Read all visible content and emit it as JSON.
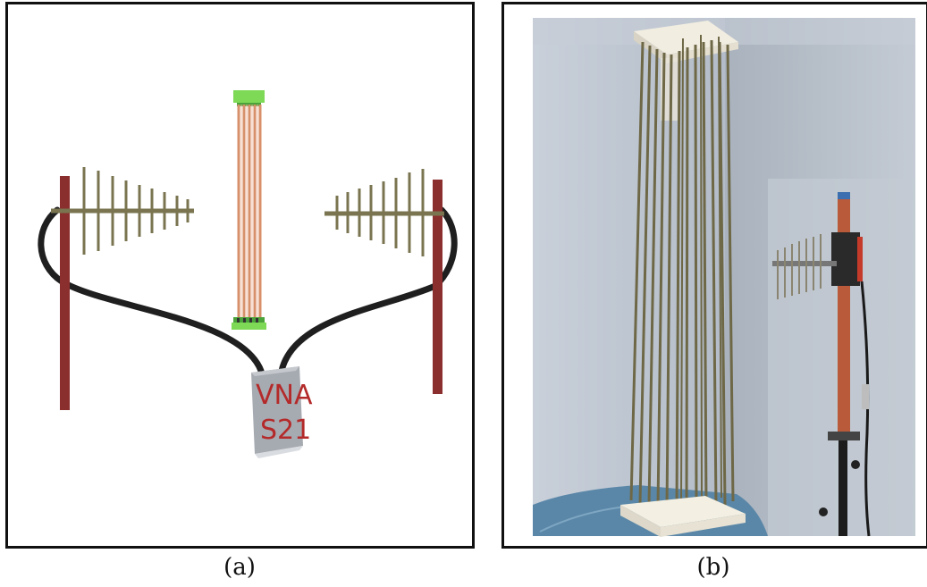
{
  "panels": [
    {
      "caption": "(a)",
      "box_label_line1": "VNA",
      "box_label_line2": "S21"
    },
    {
      "caption": "(b)"
    }
  ],
  "colors": {
    "mast": "#8b2e2e",
    "antenna": "#7a7450",
    "cable": "#1f1f1f",
    "rods": "#d7906a",
    "rod_end_caps": "#7ed957",
    "vna_box": "#a6aab1",
    "vna_text": "#b42a2a",
    "photo_wall": "#b9c2cd"
  }
}
